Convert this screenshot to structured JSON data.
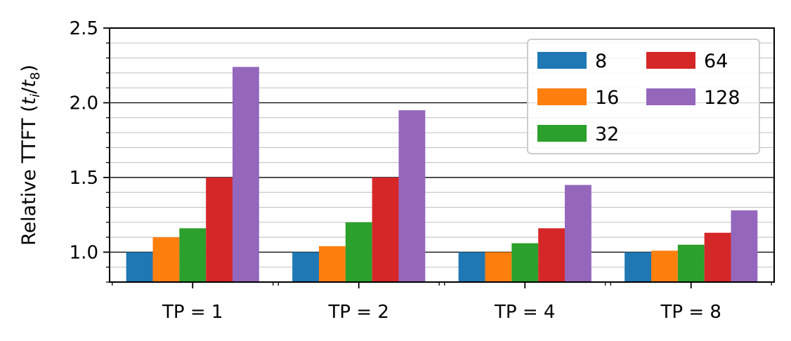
{
  "chart_data": {
    "type": "bar",
    "ylabel": "Relative TTFT (",
    "ylabel_math": {
      "var_t": "t",
      "sub_i": "i",
      "slash": "/",
      "sub_8": "8",
      "close": ")"
    },
    "categories": [
      "TP = 1",
      "TP = 2",
      "TP = 4",
      "TP = 8"
    ],
    "series": [
      {
        "name": "8",
        "color": "#1f77b4",
        "values": [
          1.0,
          1.0,
          1.0,
          1.0
        ]
      },
      {
        "name": "16",
        "color": "#ff7f0e",
        "values": [
          1.1,
          1.04,
          1.0,
          1.01
        ]
      },
      {
        "name": "32",
        "color": "#2ca02c",
        "values": [
          1.16,
          1.2,
          1.06,
          1.05
        ]
      },
      {
        "name": "64",
        "color": "#d62728",
        "values": [
          1.5,
          1.5,
          1.16,
          1.13
        ]
      },
      {
        "name": "128",
        "color": "#9467bd",
        "values": [
          2.24,
          1.95,
          1.45,
          1.28
        ]
      }
    ],
    "ylim": [
      0.8,
      2.5
    ],
    "y_ticks": [
      "1.0",
      "1.5",
      "2.0",
      "2.5"
    ],
    "y_major_step": 0.5,
    "y_minor_step": 0.1,
    "grid": "major and minor horizontal",
    "legend": {
      "placement": "top-right",
      "columns": 2
    }
  }
}
